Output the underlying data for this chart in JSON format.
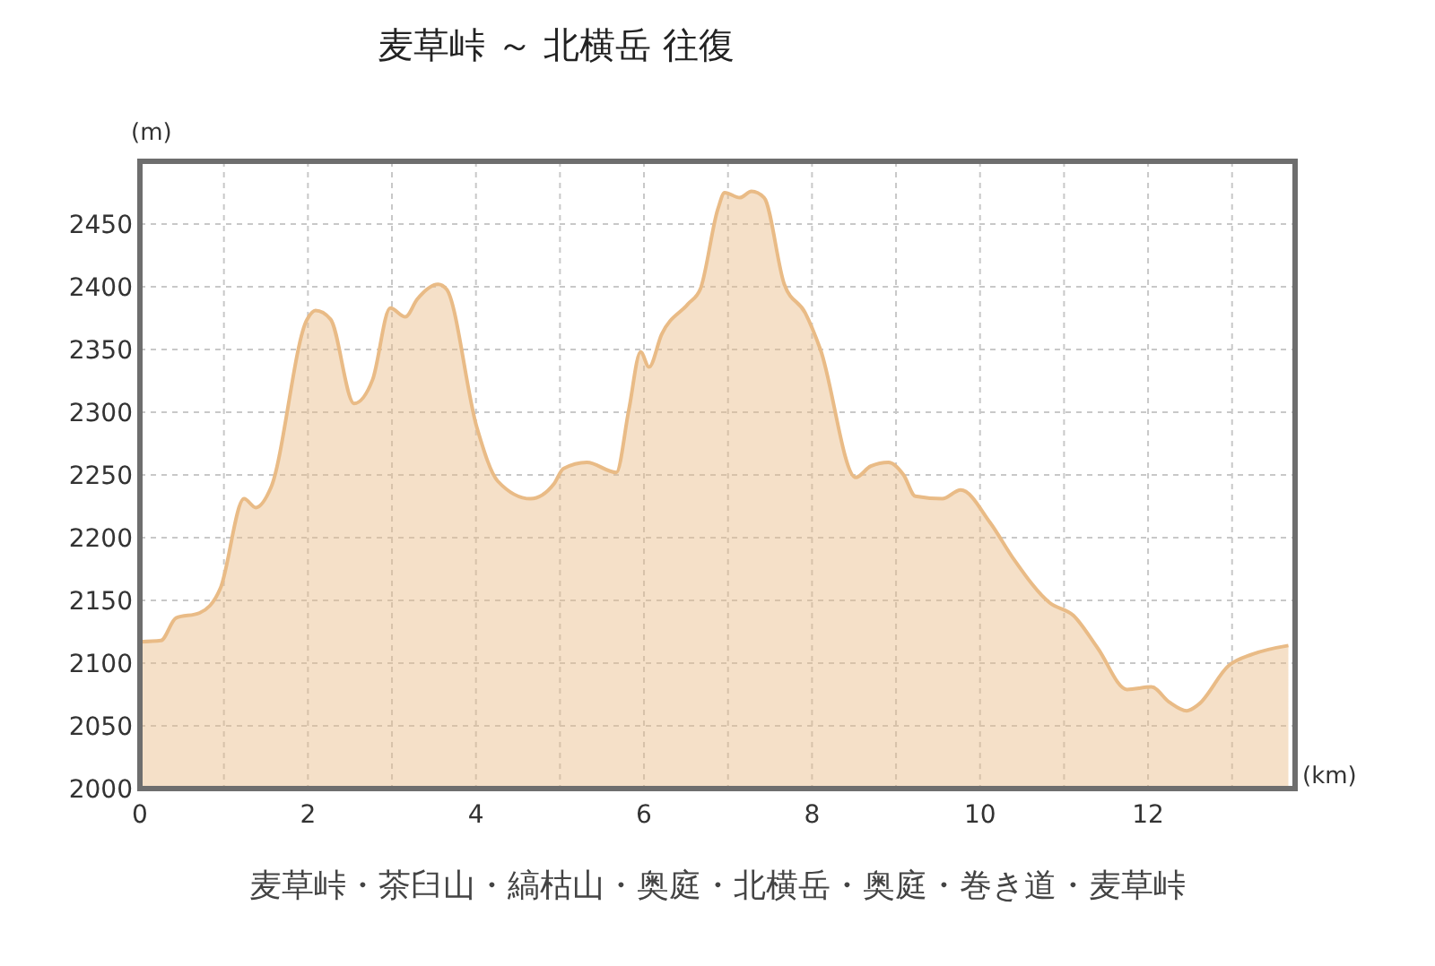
{
  "chart_data": {
    "type": "area",
    "title": "麦草峠 ～ 北横岳 往復",
    "xlabel": "(km)",
    "ylabel": "(m)",
    "annotations": [
      "麦草峠・茶臼山・縞枯山・奥庭・北横岳・奥庭・巻き道・麦草峠"
    ],
    "x": [
      0,
      0.25,
      0.43,
      0.71,
      0.96,
      1.24,
      1.38,
      1.56,
      1.99,
      2.09,
      2.27,
      2.55,
      2.77,
      2.98,
      3.16,
      3.3,
      3.55,
      3.65,
      4.01,
      4.26,
      4.65,
      4.93,
      5.04,
      5.32,
      5.67,
      5.82,
      5.96,
      6.06,
      6.21,
      6.52,
      6.67,
      6.88,
      6.96,
      7.14,
      7.28,
      7.43,
      7.67,
      7.92,
      8.1,
      8.52,
      8.7,
      8.91,
      9.09,
      9.23,
      9.55,
      9.77,
      10.12,
      10.4,
      10.83,
      11.11,
      11.4,
      11.75,
      12.04,
      12.25,
      12.46,
      12.6,
      12.96,
      13.24,
      13.67
    ],
    "series": [
      {
        "color": "#e9bb86",
        "values": [
          2117,
          2118,
          2136,
          2140,
          2160,
          2231,
          2224,
          2240,
          2374,
          2381,
          2374,
          2307,
          2326,
          2383,
          2376,
          2390,
          2402,
          2398,
          2288,
          2245,
          2231,
          2243,
          2255,
          2260,
          2252,
          2302,
          2348,
          2336,
          2362,
          2386,
          2398,
          2462,
          2475,
          2471,
          2476,
          2471,
          2402,
          2379,
          2350,
          2248,
          2257,
          2260,
          2250,
          2233,
          2231,
          2238,
          2212,
          2183,
          2148,
          2138,
          2112,
          2079,
          2081,
          2069,
          2062,
          2067,
          2098,
          2107,
          2114
        ]
      }
    ],
    "xlim": [
      0,
      13.75
    ],
    "ylim": [
      2000,
      2500
    ],
    "xticks": [
      0,
      {
        "value": 1,
        "label": null
      },
      2,
      {
        "value": 3,
        "label": null
      },
      4,
      {
        "value": 5,
        "label": null
      },
      6,
      {
        "value": 7,
        "label": null
      },
      8,
      {
        "value": 9,
        "label": null
      },
      10,
      {
        "value": 11,
        "label": null
      },
      12,
      {
        "value": 13,
        "label": null
      }
    ],
    "yticks": [
      2000,
      2050,
      2100,
      2150,
      2200,
      2250,
      2300,
      2350,
      2400,
      2450,
      {
        "value": 2500,
        "label": null
      }
    ],
    "grid": true,
    "marker": "none",
    "line_style": "solid"
  }
}
